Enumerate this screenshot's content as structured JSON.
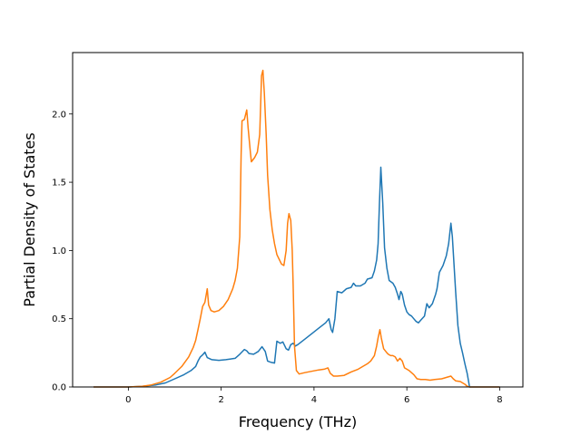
{
  "chart_data": {
    "type": "line",
    "title": "",
    "xlabel": "Frequency (THz)",
    "ylabel": "Partial Density of States",
    "xlim": [
      -1.2,
      8.5
    ],
    "ylim": [
      0.0,
      2.45
    ],
    "xticks": [
      0,
      2,
      4,
      6,
      8
    ],
    "yticks": [
      0.0,
      0.5,
      1.0,
      1.5,
      2.0
    ],
    "grid": false,
    "legend": "none",
    "series": [
      {
        "color": "#1f77b4",
        "points": [
          [
            -0.75,
            0.0
          ],
          [
            0.0,
            0.0
          ],
          [
            0.3,
            0.005
          ],
          [
            0.6,
            0.015
          ],
          [
            0.8,
            0.03
          ],
          [
            1.0,
            0.06
          ],
          [
            1.2,
            0.09
          ],
          [
            1.35,
            0.12
          ],
          [
            1.45,
            0.15
          ],
          [
            1.5,
            0.19
          ],
          [
            1.55,
            0.22
          ],
          [
            1.6,
            0.235
          ],
          [
            1.65,
            0.255
          ],
          [
            1.7,
            0.215
          ],
          [
            1.8,
            0.2
          ],
          [
            1.95,
            0.195
          ],
          [
            2.1,
            0.2
          ],
          [
            2.3,
            0.21
          ],
          [
            2.4,
            0.24
          ],
          [
            2.5,
            0.275
          ],
          [
            2.55,
            0.265
          ],
          [
            2.6,
            0.245
          ],
          [
            2.7,
            0.24
          ],
          [
            2.8,
            0.26
          ],
          [
            2.88,
            0.295
          ],
          [
            2.95,
            0.26
          ],
          [
            3.0,
            0.19
          ],
          [
            3.08,
            0.18
          ],
          [
            3.15,
            0.175
          ],
          [
            3.2,
            0.335
          ],
          [
            3.27,
            0.32
          ],
          [
            3.33,
            0.33
          ],
          [
            3.4,
            0.28
          ],
          [
            3.45,
            0.27
          ],
          [
            3.5,
            0.31
          ],
          [
            3.55,
            0.32
          ],
          [
            3.6,
            0.3
          ],
          [
            3.65,
            0.31
          ],
          [
            3.8,
            0.35
          ],
          [
            3.95,
            0.39
          ],
          [
            4.1,
            0.43
          ],
          [
            4.25,
            0.47
          ],
          [
            4.32,
            0.5
          ],
          [
            4.37,
            0.42
          ],
          [
            4.4,
            0.4
          ],
          [
            4.45,
            0.5
          ],
          [
            4.5,
            0.7
          ],
          [
            4.6,
            0.69
          ],
          [
            4.7,
            0.72
          ],
          [
            4.8,
            0.73
          ],
          [
            4.85,
            0.76
          ],
          [
            4.9,
            0.74
          ],
          [
            5.0,
            0.74
          ],
          [
            5.1,
            0.76
          ],
          [
            5.15,
            0.79
          ],
          [
            5.25,
            0.8
          ],
          [
            5.3,
            0.85
          ],
          [
            5.35,
            0.93
          ],
          [
            5.38,
            1.05
          ],
          [
            5.41,
            1.35
          ],
          [
            5.44,
            1.61
          ],
          [
            5.48,
            1.35
          ],
          [
            5.52,
            1.02
          ],
          [
            5.57,
            0.87
          ],
          [
            5.62,
            0.78
          ],
          [
            5.7,
            0.76
          ],
          [
            5.75,
            0.73
          ],
          [
            5.8,
            0.68
          ],
          [
            5.83,
            0.64
          ],
          [
            5.87,
            0.7
          ],
          [
            5.9,
            0.68
          ],
          [
            5.95,
            0.6
          ],
          [
            6.0,
            0.55
          ],
          [
            6.05,
            0.53
          ],
          [
            6.1,
            0.52
          ],
          [
            6.15,
            0.5
          ],
          [
            6.2,
            0.48
          ],
          [
            6.25,
            0.47
          ],
          [
            6.3,
            0.49
          ],
          [
            6.38,
            0.52
          ],
          [
            6.43,
            0.61
          ],
          [
            6.48,
            0.58
          ],
          [
            6.55,
            0.61
          ],
          [
            6.62,
            0.68
          ],
          [
            6.65,
            0.72
          ],
          [
            6.7,
            0.84
          ],
          [
            6.78,
            0.89
          ],
          [
            6.85,
            0.96
          ],
          [
            6.9,
            1.05
          ],
          [
            6.95,
            1.2
          ],
          [
            6.98,
            1.1
          ],
          [
            7.05,
            0.7
          ],
          [
            7.1,
            0.45
          ],
          [
            7.15,
            0.32
          ],
          [
            7.2,
            0.25
          ],
          [
            7.25,
            0.17
          ],
          [
            7.3,
            0.1
          ],
          [
            7.33,
            0.04
          ],
          [
            7.35,
            0.0
          ],
          [
            7.4,
            0.0
          ],
          [
            8.0,
            0.0
          ]
        ]
      },
      {
        "color": "#ff7f0e",
        "points": [
          [
            -0.75,
            0.0
          ],
          [
            -0.3,
            0.0
          ],
          [
            0.0,
            0.0
          ],
          [
            0.3,
            0.005
          ],
          [
            0.5,
            0.015
          ],
          [
            0.7,
            0.035
          ],
          [
            0.9,
            0.07
          ],
          [
            1.0,
            0.1
          ],
          [
            1.15,
            0.15
          ],
          [
            1.3,
            0.22
          ],
          [
            1.4,
            0.29
          ],
          [
            1.45,
            0.34
          ],
          [
            1.5,
            0.42
          ],
          [
            1.55,
            0.5
          ],
          [
            1.6,
            0.59
          ],
          [
            1.65,
            0.62
          ],
          [
            1.7,
            0.72
          ],
          [
            1.73,
            0.6
          ],
          [
            1.78,
            0.56
          ],
          [
            1.85,
            0.55
          ],
          [
            1.95,
            0.56
          ],
          [
            2.05,
            0.59
          ],
          [
            2.15,
            0.64
          ],
          [
            2.25,
            0.72
          ],
          [
            2.3,
            0.78
          ],
          [
            2.35,
            0.87
          ],
          [
            2.4,
            1.1
          ],
          [
            2.43,
            1.7
          ],
          [
            2.45,
            1.95
          ],
          [
            2.5,
            1.96
          ],
          [
            2.55,
            2.03
          ],
          [
            2.58,
            1.9
          ],
          [
            2.63,
            1.72
          ],
          [
            2.65,
            1.65
          ],
          [
            2.72,
            1.68
          ],
          [
            2.78,
            1.72
          ],
          [
            2.83,
            1.85
          ],
          [
            2.87,
            2.28
          ],
          [
            2.9,
            2.32
          ],
          [
            2.93,
            2.15
          ],
          [
            2.97,
            1.85
          ],
          [
            3.0,
            1.55
          ],
          [
            3.05,
            1.3
          ],
          [
            3.1,
            1.15
          ],
          [
            3.15,
            1.05
          ],
          [
            3.2,
            0.97
          ],
          [
            3.3,
            0.9
          ],
          [
            3.35,
            0.89
          ],
          [
            3.4,
            1.0
          ],
          [
            3.43,
            1.2
          ],
          [
            3.46,
            1.27
          ],
          [
            3.5,
            1.22
          ],
          [
            3.53,
            1.0
          ],
          [
            3.55,
            0.75
          ],
          [
            3.58,
            0.3
          ],
          [
            3.62,
            0.12
          ],
          [
            3.68,
            0.095
          ],
          [
            3.8,
            0.105
          ],
          [
            3.95,
            0.115
          ],
          [
            4.1,
            0.125
          ],
          [
            4.22,
            0.13
          ],
          [
            4.3,
            0.14
          ],
          [
            4.35,
            0.1
          ],
          [
            4.42,
            0.08
          ],
          [
            4.5,
            0.08
          ],
          [
            4.65,
            0.085
          ],
          [
            4.8,
            0.11
          ],
          [
            4.95,
            0.13
          ],
          [
            5.05,
            0.15
          ],
          [
            5.15,
            0.17
          ],
          [
            5.22,
            0.19
          ],
          [
            5.3,
            0.23
          ],
          [
            5.35,
            0.3
          ],
          [
            5.38,
            0.36
          ],
          [
            5.42,
            0.42
          ],
          [
            5.45,
            0.36
          ],
          [
            5.5,
            0.28
          ],
          [
            5.57,
            0.25
          ],
          [
            5.6,
            0.24
          ],
          [
            5.65,
            0.23
          ],
          [
            5.7,
            0.23
          ],
          [
            5.75,
            0.22
          ],
          [
            5.8,
            0.19
          ],
          [
            5.85,
            0.21
          ],
          [
            5.9,
            0.19
          ],
          [
            5.95,
            0.14
          ],
          [
            6.05,
            0.12
          ],
          [
            6.15,
            0.09
          ],
          [
            6.22,
            0.06
          ],
          [
            6.3,
            0.055
          ],
          [
            6.4,
            0.055
          ],
          [
            6.5,
            0.05
          ],
          [
            6.6,
            0.055
          ],
          [
            6.75,
            0.06
          ],
          [
            6.85,
            0.07
          ],
          [
            6.95,
            0.08
          ],
          [
            7.0,
            0.06
          ],
          [
            7.05,
            0.045
          ],
          [
            7.15,
            0.04
          ],
          [
            7.25,
            0.02
          ],
          [
            7.3,
            0.005
          ],
          [
            7.35,
            0.0
          ],
          [
            7.5,
            0.0
          ],
          [
            8.0,
            0.0
          ]
        ]
      }
    ]
  }
}
